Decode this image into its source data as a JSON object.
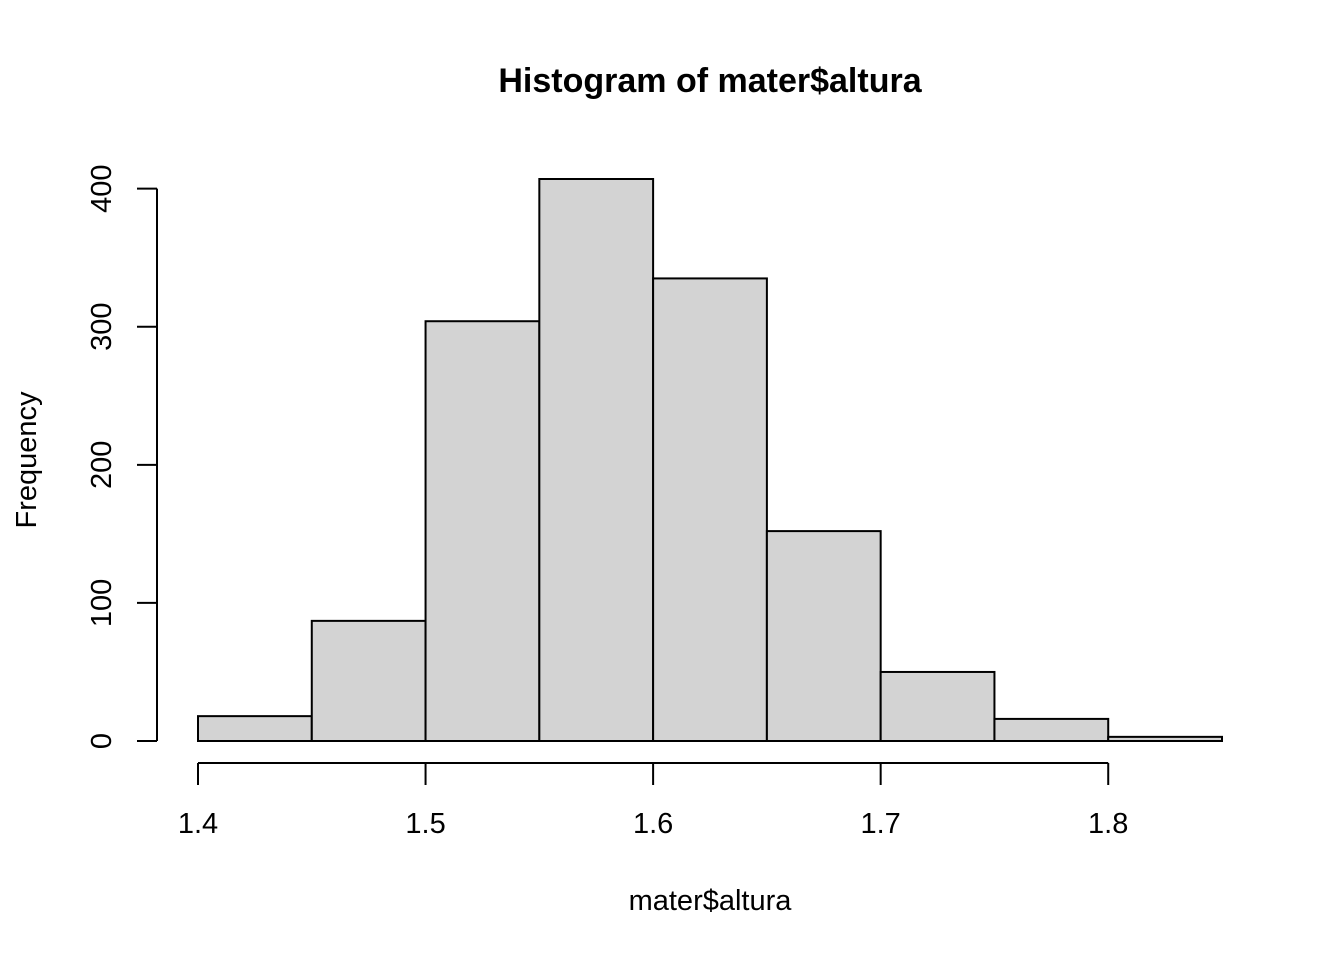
{
  "chart_data": {
    "type": "bar",
    "title": "Histogram of mater$altura",
    "xlabel": "mater$altura",
    "ylabel": "Frequency",
    "bin_edges": [
      1.4,
      1.45,
      1.5,
      1.55,
      1.6,
      1.65,
      1.7,
      1.75,
      1.8,
      1.85
    ],
    "values": [
      18,
      87,
      304,
      407,
      335,
      152,
      50,
      16,
      3
    ],
    "xlim": [
      1.4,
      1.85
    ],
    "ylim": [
      0,
      407
    ],
    "x_ticks": [
      1.4,
      1.5,
      1.6,
      1.7,
      1.8
    ],
    "x_tick_labels": [
      "1.4",
      "1.5",
      "1.6",
      "1.7",
      "1.8"
    ],
    "y_ticks": [
      0,
      100,
      200,
      300,
      400
    ],
    "y_tick_labels": [
      "0",
      "100",
      "200",
      "300",
      "400"
    ],
    "bar_color": "#d3d3d3",
    "grid": false
  }
}
